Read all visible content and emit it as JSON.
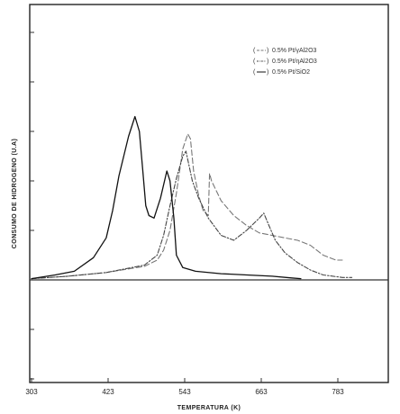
{
  "chart_data": {
    "type": "line",
    "title": "",
    "xlabel": "TEMPERATURA (K)",
    "ylabel": "CONSUMO DE HIDROGENO (U.A)",
    "xticks": [
      "303",
      "423",
      "543",
      "663",
      "783"
    ],
    "xlim": [
      303,
      783
    ],
    "ylim": [
      0,
      100
    ],
    "legend_position": "top-right",
    "grid": false,
    "series": [
      {
        "name": "0.5% Pt/γAl2O3",
        "style": "long-dash",
        "color": "#777777",
        "x": [
          303,
          360,
          420,
          480,
          500,
          510,
          520,
          530,
          540,
          548,
          552,
          557,
          565,
          572,
          580,
          582,
          585,
          600,
          620,
          640,
          660,
          680,
          700,
          720,
          740,
          760,
          780,
          790
        ],
        "y": [
          0.5,
          1.5,
          3,
          5.5,
          8,
          12,
          20,
          35,
          53,
          59,
          57,
          44,
          34,
          28,
          26,
          43,
          40,
          32,
          26,
          22,
          19,
          18,
          17,
          16,
          14,
          10,
          8,
          8
        ]
      },
      {
        "name": "0.5% Pt/ηAl2O3",
        "style": "dash-dot",
        "color": "#444444",
        "x": [
          303,
          360,
          420,
          480,
          500,
          510,
          520,
          530,
          540,
          545,
          555,
          565,
          580,
          600,
          620,
          640,
          660,
          667,
          675,
          685,
          700,
          720,
          740,
          760,
          790,
          805
        ],
        "y": [
          0.5,
          1.5,
          3,
          6,
          10,
          18,
          30,
          41,
          50,
          52,
          40,
          33,
          25,
          18,
          16,
          20,
          25,
          27,
          22,
          16,
          11,
          7,
          4,
          2,
          1,
          1
        ]
      },
      {
        "name": "0.5% Pt/SiO2",
        "style": "solid",
        "color": "#111111",
        "x": [
          303,
          340,
          370,
          400,
          420,
          430,
          440,
          455,
          465,
          472,
          477,
          482,
          487,
          495,
          505,
          515,
          520,
          526,
          530,
          540,
          560,
          600,
          640,
          680,
          710,
          725
        ],
        "y": [
          0.5,
          2,
          3.5,
          9,
          17,
          28,
          42,
          58,
          66,
          60,
          45,
          30,
          26,
          25,
          33,
          44,
          40,
          25,
          10,
          5,
          3.5,
          2.5,
          2,
          1.5,
          0.8,
          0.5
        ]
      }
    ]
  }
}
